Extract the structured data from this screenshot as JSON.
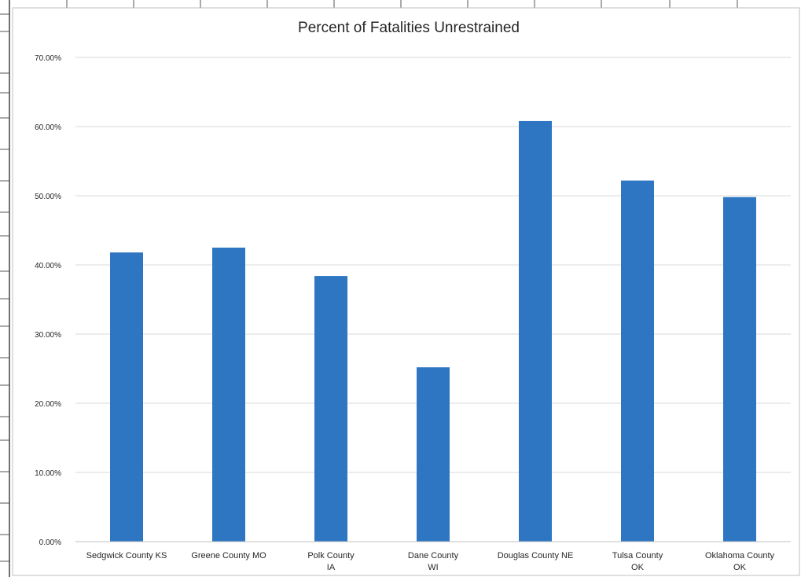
{
  "chart_data": {
    "type": "bar",
    "title": "Percent of Fatalities Unrestrained",
    "xlabel": "",
    "ylabel": "",
    "categories": [
      [
        "Sedgwick County KS"
      ],
      [
        "Greene County MO"
      ],
      [
        "Polk County",
        "IA"
      ],
      [
        "Dane County",
        "WI"
      ],
      [
        "Douglas County NE"
      ],
      [
        "Tulsa County",
        "OK"
      ],
      [
        "Oklahoma County",
        "OK"
      ]
    ],
    "values": [
      41.8,
      42.5,
      38.4,
      25.2,
      60.8,
      52.2,
      49.8
    ],
    "ylim": [
      0,
      70
    ],
    "yticks": [
      "0.00%",
      "10.00%",
      "20.00%",
      "30.00%",
      "40.00%",
      "50.00%",
      "60.00%",
      "70.00%"
    ],
    "grid": true,
    "legend": "none",
    "bar_color": "#2e75c2",
    "grid_color": "#d9d9d9"
  }
}
